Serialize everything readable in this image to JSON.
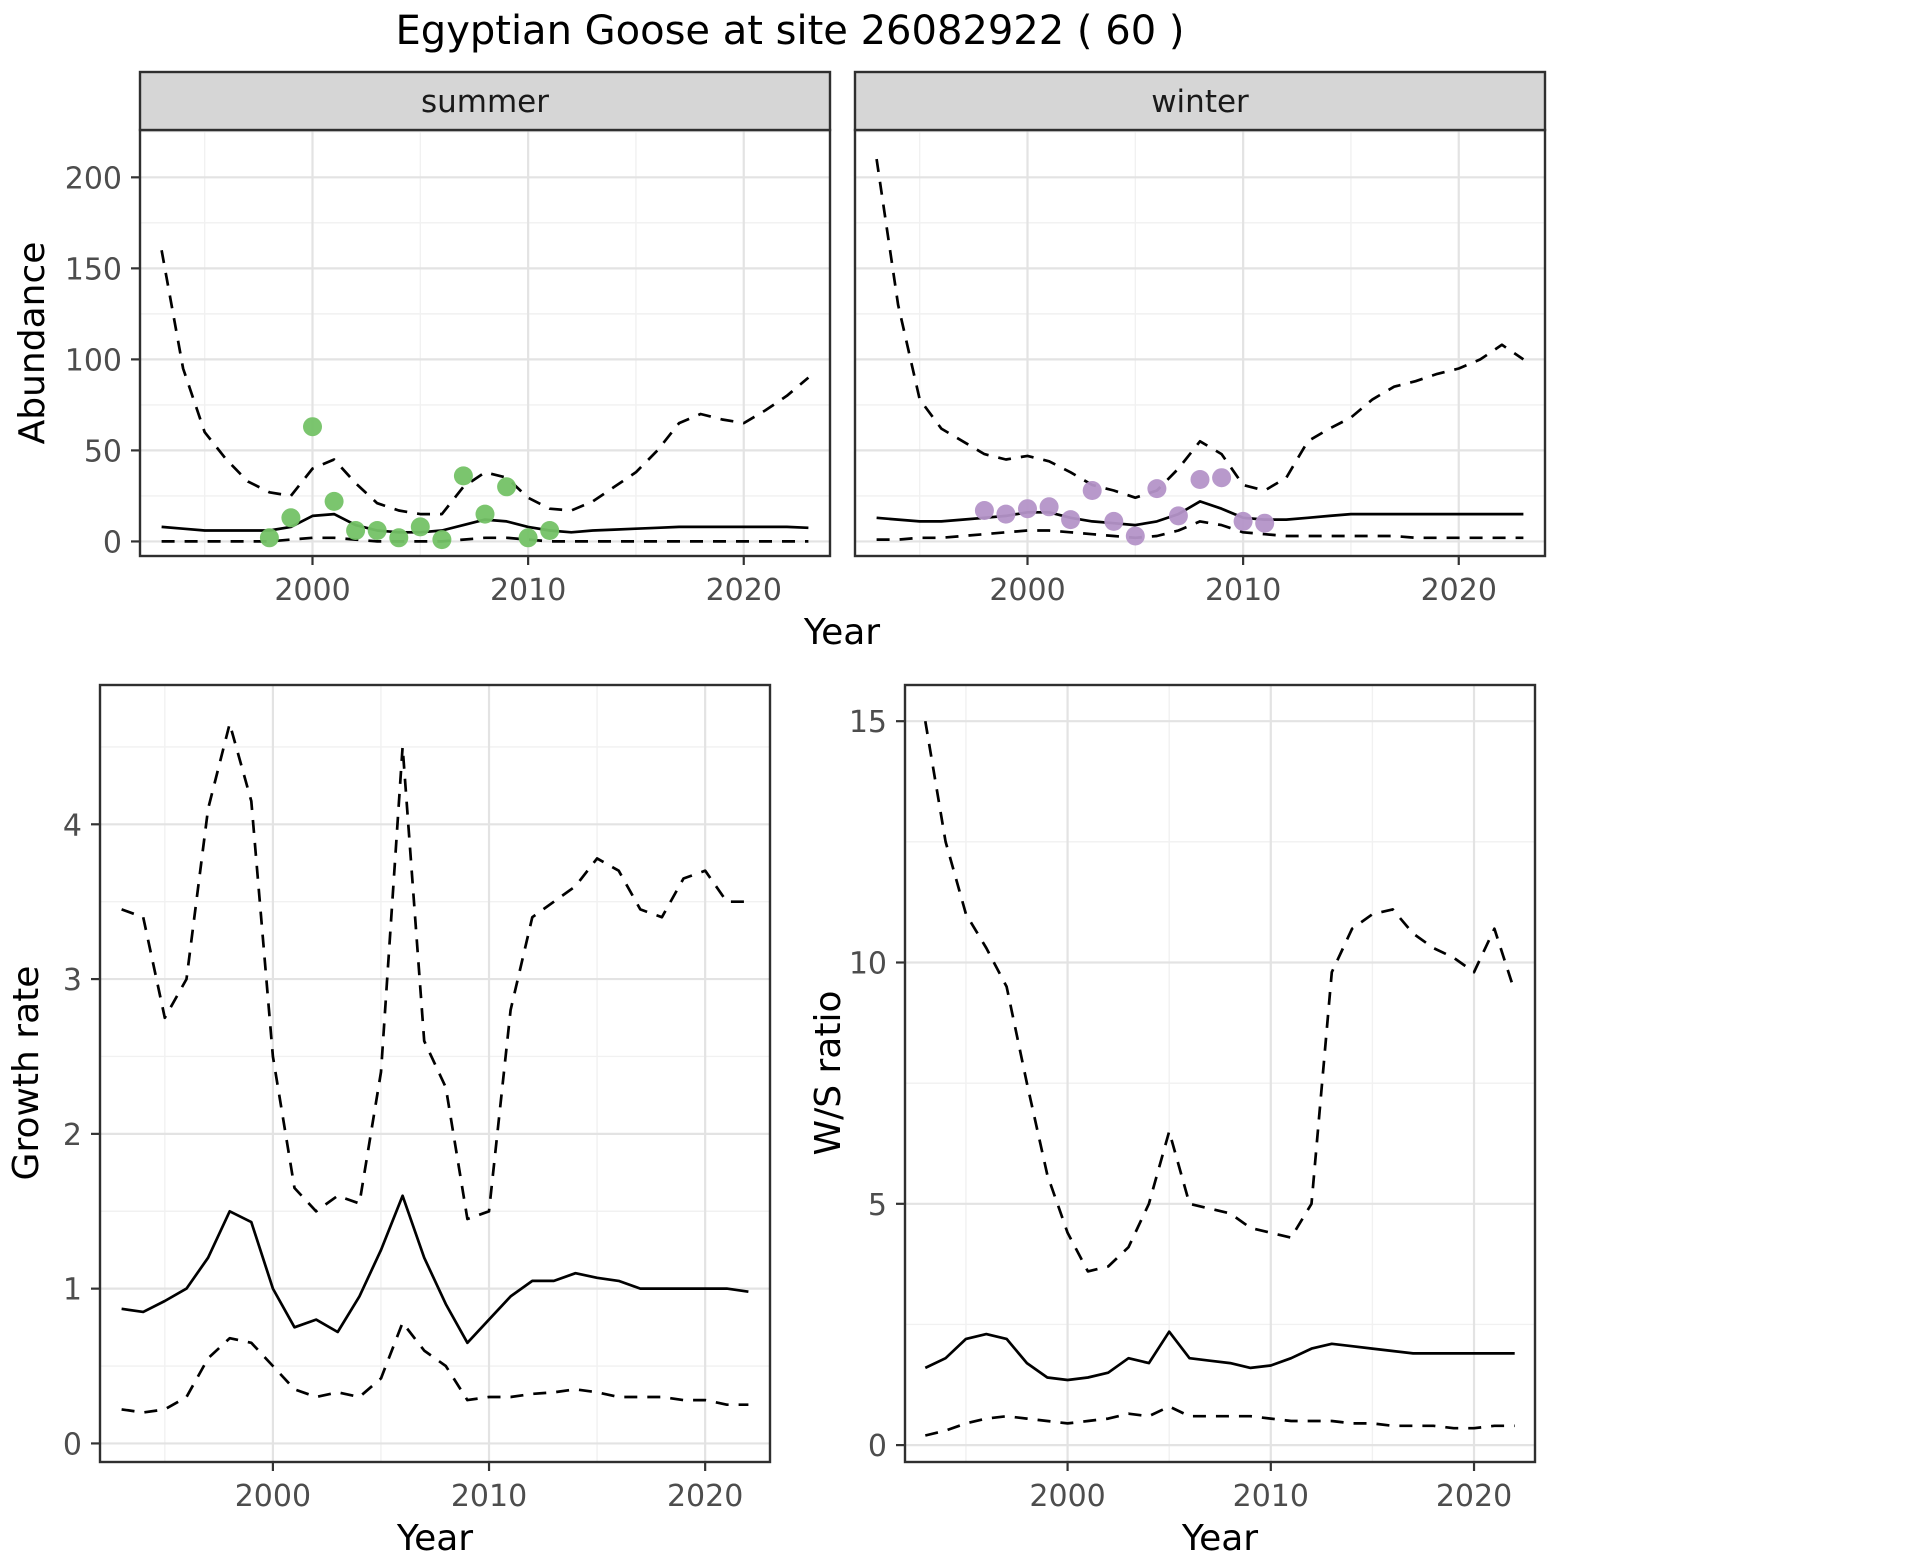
{
  "figure": {
    "title": "Egyptian Goose at site 26082922 ( 60 )",
    "colors": {
      "background": "#ffffff",
      "line": "#000000",
      "summer_points": "#74c266",
      "winter_points": "#b493c8",
      "strip_fill": "#d6d6d6",
      "panel_border": "#2f2f2f",
      "grid_major": "#e3e3e3",
      "grid_minor": "#f1f1f1",
      "tick_mark": "#333333",
      "tick_text": "#4d4d4d"
    }
  },
  "labels": {
    "abundance": "Abundance",
    "growth": "Growth rate",
    "ws": "W/S ratio",
    "year": "Year"
  },
  "facets": [
    {
      "label": "summer"
    },
    {
      "label": "winter"
    }
  ],
  "chart_data": [
    {
      "id": "abundance-summer",
      "type": "line",
      "facet": "summer",
      "xlabel": "Year",
      "ylabel": "Abundance",
      "xlim": [
        1992,
        2024
      ],
      "ylim": [
        -8,
        226
      ],
      "xticks": [
        2000,
        2010,
        2020
      ],
      "yticks": [
        0,
        50,
        100,
        150,
        200
      ],
      "x": [
        1993,
        1994,
        1995,
        1996,
        1997,
        1998,
        1999,
        2000,
        2001,
        2002,
        2003,
        2004,
        2005,
        2006,
        2007,
        2008,
        2009,
        2010,
        2011,
        2012,
        2013,
        2014,
        2015,
        2016,
        2017,
        2018,
        2019,
        2020,
        2021,
        2022,
        2023
      ],
      "series": [
        {
          "name": "mean",
          "style": "solid",
          "values": [
            8,
            7,
            6,
            6,
            6,
            6,
            8,
            14,
            15,
            9,
            6,
            5,
            5,
            6,
            9,
            12,
            11,
            8,
            6,
            5,
            6,
            6.5,
            7,
            7.5,
            8,
            8,
            8,
            8,
            8,
            8,
            7.5
          ]
        },
        {
          "name": "upper_ci",
          "style": "dashed",
          "values": [
            160,
            95,
            60,
            45,
            33,
            27,
            25,
            40,
            45,
            32,
            21,
            17,
            15,
            15,
            30,
            38,
            35,
            24,
            18,
            17,
            22,
            30,
            38,
            50,
            65,
            70,
            67,
            65,
            72,
            80,
            90
          ]
        },
        {
          "name": "lower_ci",
          "style": "dashed",
          "values": [
            0,
            0,
            0,
            0,
            0,
            0,
            1,
            2,
            2,
            1,
            0,
            0,
            0,
            0,
            1,
            2,
            2,
            1,
            0,
            0,
            0,
            0,
            0,
            0,
            0,
            0,
            0,
            0,
            0,
            0,
            0
          ]
        }
      ],
      "points": {
        "name": "observed_counts",
        "color_key": "summer_points",
        "x": [
          1998,
          1999,
          2000,
          2001,
          2002,
          2003,
          2004,
          2005,
          2006,
          2007,
          2008,
          2009,
          2010,
          2011
        ],
        "y": [
          2,
          13,
          63,
          22,
          6,
          6,
          2,
          8,
          1,
          36,
          15,
          30,
          2,
          6
        ]
      }
    },
    {
      "id": "abundance-winter",
      "type": "line",
      "facet": "winter",
      "xlabel": "Year",
      "ylabel": "Abundance",
      "xlim": [
        1992,
        2024
      ],
      "ylim": [
        -8,
        226
      ],
      "xticks": [
        2000,
        2010,
        2020
      ],
      "yticks": [
        0,
        50,
        100,
        150,
        200
      ],
      "x": [
        1993,
        1994,
        1995,
        1996,
        1997,
        1998,
        1999,
        2000,
        2001,
        2002,
        2003,
        2004,
        2005,
        2006,
        2007,
        2008,
        2009,
        2010,
        2011,
        2012,
        2013,
        2014,
        2015,
        2016,
        2017,
        2018,
        2019,
        2020,
        2021,
        2022,
        2023
      ],
      "series": [
        {
          "name": "mean",
          "style": "solid",
          "values": [
            13,
            12,
            11,
            11,
            12,
            13,
            14,
            16,
            16,
            13,
            11,
            10,
            9,
            11,
            15,
            22,
            18,
            13,
            12,
            12,
            13,
            14,
            15,
            15,
            15,
            15,
            15,
            15,
            15,
            15,
            15
          ]
        },
        {
          "name": "upper_ci",
          "style": "dashed",
          "values": [
            210,
            130,
            78,
            62,
            55,
            48,
            45,
            47,
            44,
            38,
            31,
            28,
            24,
            28,
            40,
            55,
            48,
            31,
            28,
            35,
            55,
            62,
            68,
            78,
            85,
            88,
            92,
            95,
            100,
            108,
            100
          ]
        },
        {
          "name": "lower_ci",
          "style": "dashed",
          "values": [
            1,
            1,
            2,
            2,
            3,
            4,
            5,
            6,
            6,
            5,
            4,
            3,
            2,
            3,
            6,
            11,
            9,
            5,
            4,
            3,
            3,
            3,
            3,
            3,
            3,
            2,
            2,
            2,
            2,
            2,
            2
          ]
        }
      ],
      "points": {
        "name": "observed_counts",
        "color_key": "winter_points",
        "x": [
          1998,
          1999,
          2000,
          2001,
          2002,
          2003,
          2004,
          2005,
          2006,
          2007,
          2008,
          2009,
          2010,
          2011
        ],
        "y": [
          17,
          15,
          18,
          19,
          12,
          28,
          11,
          3,
          29,
          14,
          34,
          35,
          11,
          10
        ]
      }
    },
    {
      "id": "growth-rate",
      "type": "line",
      "xlabel": "Year",
      "ylabel": "Growth rate",
      "xlim": [
        1992,
        2023
      ],
      "ylim": [
        -0.12,
        4.9
      ],
      "xticks": [
        2000,
        2010,
        2020
      ],
      "yticks": [
        0,
        1,
        2,
        3,
        4
      ],
      "x": [
        1993,
        1994,
        1995,
        1996,
        1997,
        1998,
        1999,
        2000,
        2001,
        2002,
        2003,
        2004,
        2005,
        2006,
        2007,
        2008,
        2009,
        2010,
        2011,
        2012,
        2013,
        2014,
        2015,
        2016,
        2017,
        2018,
        2019,
        2020,
        2021,
        2022
      ],
      "series": [
        {
          "name": "mean",
          "style": "solid",
          "values": [
            0.87,
            0.85,
            0.92,
            1.0,
            1.2,
            1.5,
            1.43,
            1.0,
            0.75,
            0.8,
            0.72,
            0.95,
            1.25,
            1.6,
            1.2,
            0.9,
            0.65,
            0.8,
            0.95,
            1.05,
            1.05,
            1.1,
            1.07,
            1.05,
            1.0,
            1.0,
            1.0,
            1.0,
            1.0,
            0.98
          ]
        },
        {
          "name": "upper_ci",
          "style": "dashed",
          "values": [
            3.45,
            3.4,
            2.75,
            3.0,
            4.1,
            4.65,
            4.15,
            2.5,
            1.65,
            1.5,
            1.6,
            1.55,
            2.4,
            4.5,
            2.6,
            2.3,
            1.45,
            1.5,
            2.8,
            3.4,
            3.5,
            3.6,
            3.78,
            3.7,
            3.45,
            3.4,
            3.65,
            3.7,
            3.5,
            3.5
          ]
        },
        {
          "name": "lower_ci",
          "style": "dashed",
          "values": [
            0.22,
            0.2,
            0.22,
            0.3,
            0.55,
            0.68,
            0.65,
            0.5,
            0.35,
            0.3,
            0.33,
            0.3,
            0.42,
            0.78,
            0.6,
            0.5,
            0.28,
            0.3,
            0.3,
            0.32,
            0.33,
            0.35,
            0.33,
            0.3,
            0.3,
            0.3,
            0.28,
            0.28,
            0.25,
            0.25
          ]
        }
      ]
    },
    {
      "id": "ws-ratio",
      "type": "line",
      "xlabel": "Year",
      "ylabel": "W/S ratio",
      "xlim": [
        1992,
        2023
      ],
      "ylim": [
        -0.35,
        15.75
      ],
      "xticks": [
        2000,
        2010,
        2020
      ],
      "yticks": [
        0,
        5,
        10,
        15
      ],
      "x": [
        1993,
        1994,
        1995,
        1996,
        1997,
        1998,
        1999,
        2000,
        2001,
        2002,
        2003,
        2004,
        2005,
        2006,
        2007,
        2008,
        2009,
        2010,
        2011,
        2012,
        2013,
        2014,
        2015,
        2016,
        2017,
        2018,
        2019,
        2020,
        2021,
        2022
      ],
      "series": [
        {
          "name": "mean",
          "style": "solid",
          "values": [
            1.6,
            1.8,
            2.2,
            2.3,
            2.2,
            1.7,
            1.4,
            1.35,
            1.4,
            1.5,
            1.8,
            1.7,
            2.35,
            1.8,
            1.75,
            1.7,
            1.6,
            1.65,
            1.8,
            2.0,
            2.1,
            2.05,
            2.0,
            1.95,
            1.9,
            1.9,
            1.9,
            1.9,
            1.9,
            1.9
          ]
        },
        {
          "name": "upper_ci",
          "style": "dashed",
          "values": [
            15.0,
            12.5,
            11.0,
            10.3,
            9.5,
            7.5,
            5.6,
            4.4,
            3.6,
            3.7,
            4.1,
            5.0,
            6.5,
            5.0,
            4.9,
            4.8,
            4.5,
            4.4,
            4.3,
            5.0,
            9.8,
            10.7,
            11.0,
            11.1,
            10.6,
            10.3,
            10.1,
            9.8,
            10.7,
            9.4
          ]
        },
        {
          "name": "lower_ci",
          "style": "dashed",
          "values": [
            0.2,
            0.3,
            0.45,
            0.55,
            0.6,
            0.55,
            0.5,
            0.45,
            0.5,
            0.55,
            0.65,
            0.6,
            0.8,
            0.6,
            0.6,
            0.6,
            0.6,
            0.55,
            0.5,
            0.5,
            0.5,
            0.45,
            0.45,
            0.4,
            0.4,
            0.4,
            0.35,
            0.35,
            0.4,
            0.4
          ]
        }
      ]
    }
  ]
}
